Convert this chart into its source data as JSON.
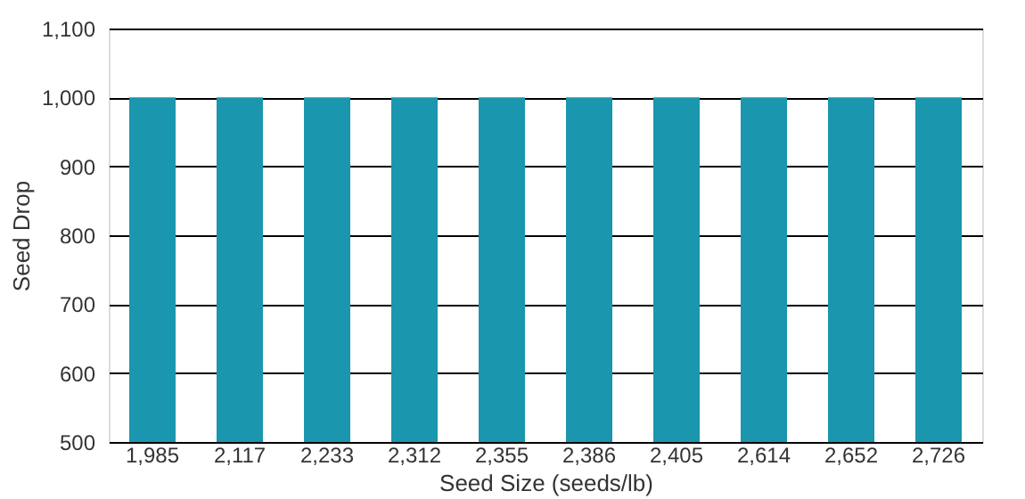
{
  "chart_data": {
    "type": "bar",
    "xlabel": "Seed Size (seeds/lb)",
    "ylabel": "Seed Drop",
    "categories": [
      "1,985",
      "2,117",
      "2,233",
      "2,312",
      "2,355",
      "2,386",
      "2,405",
      "2,614",
      "2,652",
      "2,726"
    ],
    "values": [
      1000,
      1000,
      1000,
      1000,
      1000,
      1000,
      1000,
      1000,
      1000,
      1000
    ],
    "color": "#1a96ae",
    "ylim": [
      500,
      1100
    ],
    "yticks": [
      500,
      600,
      700,
      800,
      900,
      {
        "value": 1000,
        "label": "1,000"
      },
      {
        "value": 1100,
        "label": "1,100"
      }
    ],
    "grid": "y"
  }
}
